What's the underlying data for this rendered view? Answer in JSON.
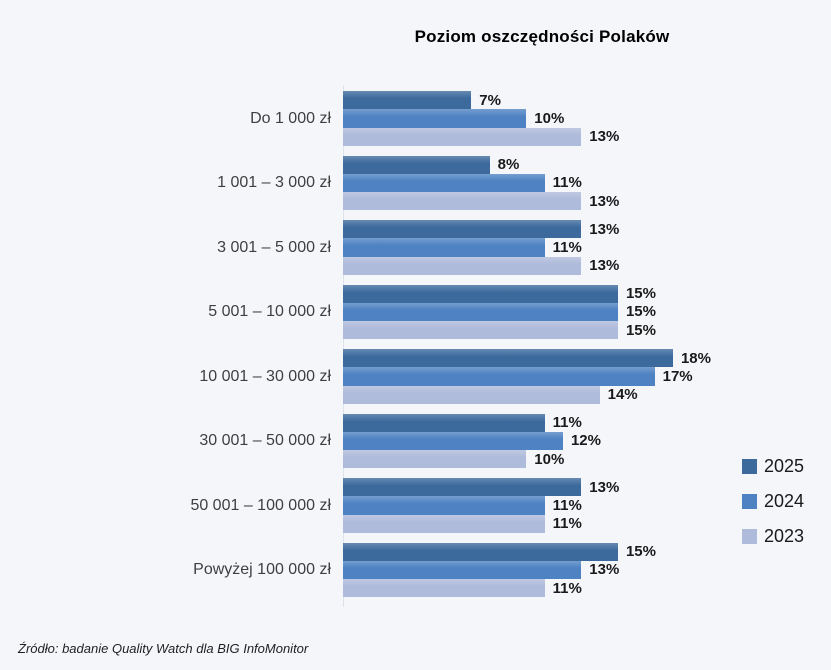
{
  "title": "Poziom oszczędności Polaków",
  "source": "Źródło: badanie Quality Watch dla BIG InfoMonitor",
  "colors": {
    "background": "#f5f6fa",
    "series_2025": "#3d6a9d",
    "series_2024": "#4e82c2",
    "series_2023": "#aebbda"
  },
  "chart_data": {
    "type": "bar",
    "orientation": "horizontal",
    "title": "Poziom oszczędności Polaków",
    "categories": [
      "Do 1 000 zł",
      "1 001 – 3 000 zł",
      "3 001 – 5 000 zł",
      "5 001 – 10 000 zł",
      "10 001 – 30 000 zł",
      "30 001 – 50 000 zł",
      "50 001 – 100 000 zł",
      "Powyżej 100 000 zł"
    ],
    "series": [
      {
        "name": "2025",
        "color": "#3d6a9d",
        "values": [
          7,
          8,
          13,
          15,
          18,
          11,
          13,
          15
        ]
      },
      {
        "name": "2024",
        "color": "#4e82c2",
        "values": [
          10,
          11,
          11,
          15,
          17,
          12,
          11,
          13
        ]
      },
      {
        "name": "2023",
        "color": "#aebbda",
        "values": [
          13,
          13,
          13,
          15,
          14,
          10,
          11,
          11
        ]
      }
    ],
    "value_suffix": "%",
    "xlim": [
      0,
      18
    ],
    "grid": false,
    "legend_position": "right",
    "data_labels": true
  }
}
